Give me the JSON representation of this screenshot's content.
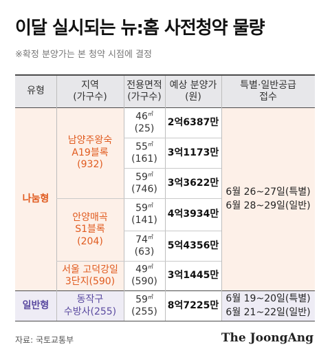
{
  "title": "이달 실시되는 뉴:홈 사전청약 물량",
  "subtitle": "※확정 분양가는 본 청약 시점에 결정",
  "colors": {
    "sharing_type": "#e05a1e",
    "general_type": "#5a4aa0",
    "header_bg": "#e7e7ea",
    "sharing_bg": "#fdf0e8",
    "general_bg": "#eeecf5"
  },
  "table": {
    "unit_sqm": "㎡",
    "headers": [
      {
        "line1": "유형"
      },
      {
        "line1": "지역",
        "line2": "(가구수)"
      },
      {
        "line1": "전용면적",
        "line2": "(가구수)"
      },
      {
        "line1": "예상 분양가",
        "line2": "(원)"
      },
      {
        "line1": "특별·일반공급",
        "line2": "접수"
      }
    ],
    "groups": [
      {
        "type": "나눔형",
        "regions": [
          {
            "name1": "남양주왕숙",
            "name2": "A19블록",
            "units": "(932)"
          },
          {
            "name1": "안양매곡",
            "name2": "S1블록",
            "units": "(204)"
          },
          {
            "name1": "서울 고덕강일",
            "name2": "3단지(590)"
          }
        ],
        "schedule": [
          "6월 26~27일(특별)",
          "6월 28~29일(일반)"
        ]
      },
      {
        "type": "일반형",
        "regions": [
          {
            "name1": "동작구",
            "name2": "수방사(255)"
          }
        ],
        "schedule": [
          "6월 19~20일(특별)",
          "6월 21~22일(일반)"
        ]
      }
    ],
    "rows": [
      {
        "area": "46",
        "units": "(25)",
        "price": "2억6387만"
      },
      {
        "area": "55",
        "units": "(161)",
        "price": "3억1173만"
      },
      {
        "area": "59",
        "units": "(746)",
        "price": "3억3622만"
      },
      {
        "area": "59",
        "units": "(141)",
        "price": "4억3934만"
      },
      {
        "area": "74",
        "units": "(63)",
        "price": "5억4356만"
      },
      {
        "area": "49",
        "units": "(590)",
        "price": "3억1445만"
      },
      {
        "area": "59",
        "units": "(255)",
        "price": "8억7225만"
      }
    ]
  },
  "source": "자료: 국토교통부",
  "publisher": "The JoongAng"
}
